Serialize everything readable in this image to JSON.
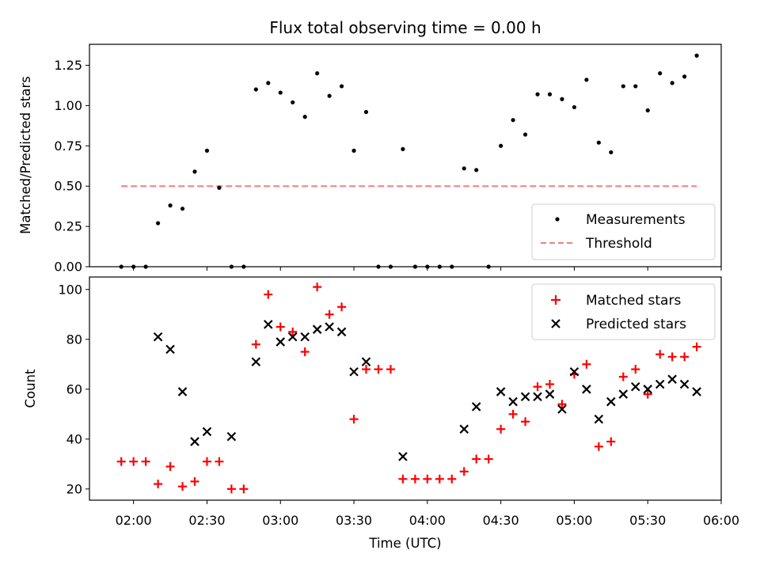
{
  "chart_data": [
    {
      "type": "scatter",
      "title": "Flux total observing time = 0.00 h",
      "xlabel": "",
      "ylabel": "Matched/Predicted stars",
      "ylim": [
        0,
        1.38
      ],
      "yticks": [
        "0.00",
        "0.25",
        "0.50",
        "0.75",
        "1.00",
        "1.25"
      ],
      "ytick_values": [
        0,
        0.25,
        0.5,
        0.75,
        1.0,
        1.25
      ],
      "legend": "bottom-right",
      "series": [
        {
          "name": "Measurements",
          "marker": "dot",
          "color": "#000000",
          "x": [
            "01:55",
            "02:00",
            "02:05",
            "02:10",
            "02:15",
            "02:20",
            "02:25",
            "02:30",
            "02:35",
            "02:40",
            "02:45",
            "02:50",
            "02:55",
            "03:00",
            "03:05",
            "03:10",
            "03:15",
            "03:20",
            "03:25",
            "03:30",
            "03:35",
            "03:40",
            "03:45",
            "03:50",
            "03:55",
            "04:00",
            "04:05",
            "04:10",
            "04:15",
            "04:20",
            "04:25",
            "04:30",
            "04:35",
            "04:40",
            "04:45",
            "04:50",
            "04:55",
            "05:00",
            "05:05",
            "05:10",
            "05:15",
            "05:20",
            "05:25",
            "05:30",
            "05:35",
            "05:40",
            "05:45",
            "05:50"
          ],
          "y": [
            0,
            0,
            0,
            0.27,
            0.38,
            0.36,
            0.59,
            0.72,
            0.49,
            0,
            0,
            1.1,
            1.14,
            1.08,
            1.02,
            0.93,
            1.2,
            1.06,
            1.12,
            0.72,
            0.96,
            0,
            0,
            0.73,
            0,
            0,
            0,
            0,
            0.61,
            0.6,
            0,
            0.75,
            0.91,
            0.82,
            1.07,
            1.07,
            1.04,
            0.99,
            1.16,
            0.77,
            0.71,
            1.12,
            1.12,
            0.97,
            1.2,
            1.14,
            1.18,
            1.31
          ]
        },
        {
          "name": "Threshold",
          "style": "dashed",
          "color": "#f08080",
          "x": [
            "01:55",
            "05:50"
          ],
          "y": [
            0.5,
            0.5
          ]
        }
      ]
    },
    {
      "type": "scatter",
      "title": "",
      "xlabel": "Time (UTC)",
      "ylabel": "Count",
      "ylim": [
        15.5,
        105
      ],
      "yticks": [
        "20",
        "40",
        "60",
        "80",
        "100"
      ],
      "ytick_values": [
        20,
        40,
        60,
        80,
        100
      ],
      "xticks": [
        "02:00",
        "02:30",
        "03:00",
        "03:30",
        "04:00",
        "04:30",
        "05:00",
        "05:30",
        "06:00"
      ],
      "xlim": [
        "01:42",
        "06:00"
      ],
      "legend": "top-right",
      "series": [
        {
          "name": "Matched stars",
          "marker": "plus",
          "color": "#ff0000",
          "x": [
            "01:55",
            "02:00",
            "02:05",
            "02:10",
            "02:15",
            "02:20",
            "02:25",
            "02:30",
            "02:35",
            "02:40",
            "02:45",
            "02:50",
            "02:55",
            "03:00",
            "03:05",
            "03:10",
            "03:15",
            "03:20",
            "03:25",
            "03:30",
            "03:35",
            "03:40",
            "03:45",
            "03:50",
            "03:55",
            "04:00",
            "04:05",
            "04:10",
            "04:15",
            "04:20",
            "04:25",
            "04:30",
            "04:35",
            "04:40",
            "04:45",
            "04:50",
            "04:55",
            "05:00",
            "05:05",
            "05:10",
            "05:15",
            "05:20",
            "05:25",
            "05:30",
            "05:35",
            "05:40",
            "05:45",
            "05:50"
          ],
          "y": [
            31,
            31,
            31,
            22,
            29,
            21,
            23,
            31,
            31,
            20,
            20,
            78,
            98,
            85,
            83,
            75,
            101,
            90,
            93,
            48,
            68,
            68,
            68,
            24,
            24,
            24,
            24,
            24,
            27,
            32,
            32,
            44,
            50,
            47,
            61,
            62,
            54,
            66,
            70,
            37,
            39,
            65,
            68,
            58,
            74,
            73,
            73,
            77
          ]
        },
        {
          "name": "Predicted stars",
          "marker": "x",
          "color": "#000000",
          "x": [
            "02:10",
            "02:15",
            "02:20",
            "02:25",
            "02:30",
            "02:40",
            "02:50",
            "02:55",
            "03:00",
            "03:05",
            "03:10",
            "03:15",
            "03:20",
            "03:25",
            "03:30",
            "03:35",
            "03:50",
            "04:15",
            "04:20",
            "04:30",
            "04:35",
            "04:40",
            "04:45",
            "04:50",
            "04:55",
            "05:00",
            "05:05",
            "05:10",
            "05:15",
            "05:20",
            "05:25",
            "05:30",
            "05:35",
            "05:40",
            "05:45",
            "05:50"
          ],
          "y": [
            81,
            76,
            59,
            39,
            43,
            41,
            71,
            86,
            79,
            81,
            81,
            84,
            85,
            83,
            67,
            71,
            33,
            44,
            53,
            59,
            55,
            57,
            57,
            58,
            52,
            67,
            60,
            48,
            55,
            58,
            61,
            60,
            62,
            64,
            62,
            59
          ]
        }
      ]
    }
  ]
}
